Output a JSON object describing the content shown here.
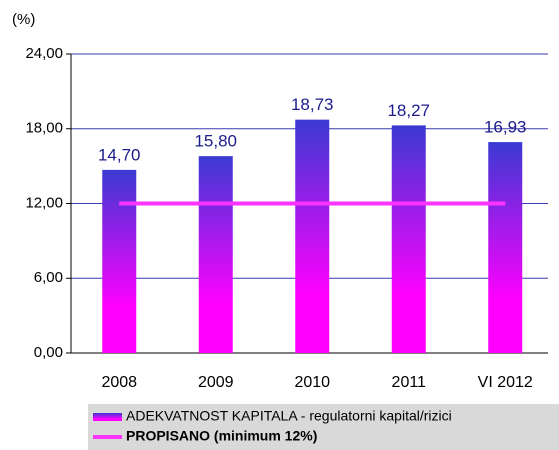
{
  "chart_data": {
    "type": "bar",
    "y_label": "(%)",
    "categories": [
      "2008",
      "2009",
      "2010",
      "2011",
      "VI 2012"
    ],
    "series": [
      {
        "name": "ADEKVATNOST KAPITALA - regulatorni kapital/rizici",
        "type": "bar",
        "color": [
          "#3a3ad2",
          "#ff00ff"
        ],
        "values": [
          14.7,
          15.8,
          18.73,
          18.27,
          16.93
        ],
        "value_labels": [
          "14,70",
          "15,80",
          "18,73",
          "18,27",
          "16,93"
        ]
      },
      {
        "name": "PROPISANO (minimum 12%)",
        "type": "line",
        "color": "#ff33ff",
        "values": [
          12,
          12,
          12,
          12,
          12
        ]
      }
    ],
    "ylim": [
      0,
      24
    ],
    "yticks": [
      {
        "value": 0,
        "label": "0,00"
      },
      {
        "value": 6,
        "label": "6,00"
      },
      {
        "value": 12,
        "label": "12,00"
      },
      {
        "value": 18,
        "label": "18,00"
      },
      {
        "value": 24,
        "label": "24,00"
      }
    ],
    "grid": true,
    "legend": "bottom"
  }
}
